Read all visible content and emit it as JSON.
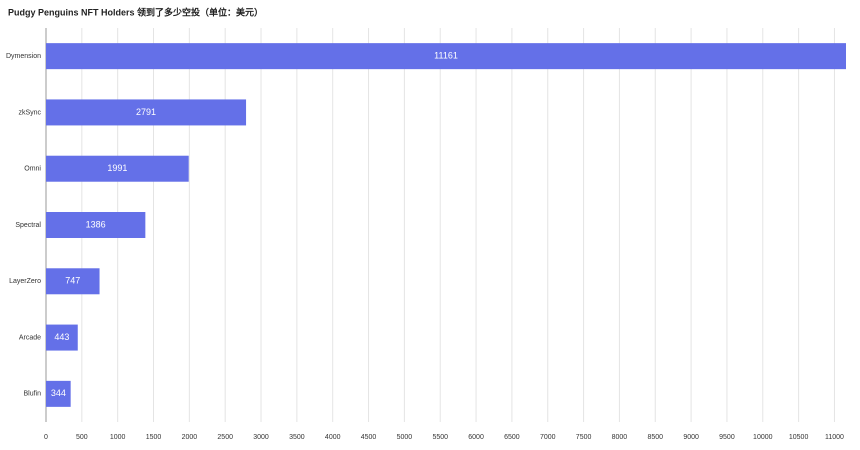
{
  "chart_data": {
    "type": "bar",
    "orientation": "horizontal",
    "title": "Pudgy Penguins NFT Holders 领到了多少空投（单位：美元）",
    "categories": [
      "Dymension",
      "zkSync",
      "Omni",
      "Spectral",
      "LayerZero",
      "Arcade",
      "Blufin"
    ],
    "values": [
      11161,
      2791,
      1991,
      1386,
      747,
      443,
      344
    ],
    "color": "#6470e8",
    "xlim": [
      0,
      11161
    ],
    "xticks": [
      0,
      500,
      1000,
      1500,
      2000,
      2500,
      3000,
      3500,
      4000,
      4500,
      5000,
      5500,
      6000,
      6500,
      7000,
      7500,
      8000,
      8500,
      9000,
      9500,
      10000,
      10500,
      11000
    ],
    "grid": true
  }
}
